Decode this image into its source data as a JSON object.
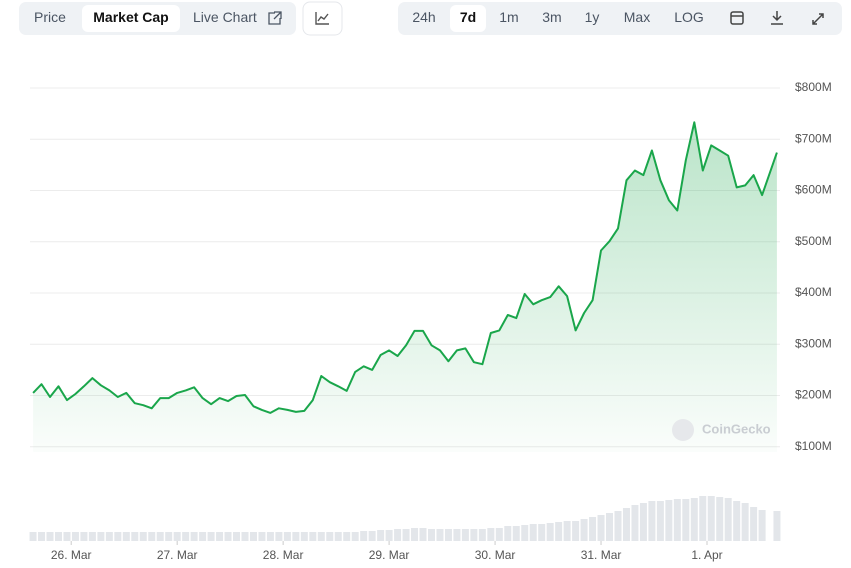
{
  "toolbar": {
    "tabs": [
      "Price",
      "Market Cap",
      "Live Chart"
    ],
    "active_tab": 1,
    "ranges": [
      "24h",
      "7d",
      "1m",
      "3m",
      "1y",
      "Max",
      "LOG"
    ],
    "active_range": 1
  },
  "chart_data": {
    "type": "line",
    "watermark": "CoinGecko",
    "grid": true,
    "x": [
      25.64,
      25.72,
      25.8,
      25.88,
      25.96,
      26.04,
      26.12,
      26.2,
      26.28,
      26.36,
      26.44,
      26.52,
      26.6,
      26.68,
      26.76,
      26.84,
      26.92,
      27.0,
      27.08,
      27.16,
      27.24,
      27.32,
      27.4,
      27.48,
      27.56,
      27.64,
      27.72,
      27.8,
      27.88,
      27.96,
      28.04,
      28.12,
      28.2,
      28.28,
      28.36,
      28.44,
      28.52,
      28.6,
      28.68,
      28.76,
      28.84,
      28.92,
      29.0,
      29.08,
      29.16,
      29.24,
      29.32,
      29.4,
      29.48,
      29.56,
      29.64,
      29.72,
      29.8,
      29.88,
      29.96,
      30.04,
      30.12,
      30.2,
      30.28,
      30.36,
      30.44,
      30.52,
      30.6,
      30.68,
      30.76,
      30.84,
      30.92,
      31.0,
      31.08,
      31.16,
      31.24,
      31.32,
      31.4,
      31.48,
      31.56,
      31.64,
      31.72,
      31.8,
      31.88,
      31.96,
      32.04,
      32.12,
      32.2,
      32.28,
      32.36,
      32.44,
      32.52,
      32.66
    ],
    "series": [
      {
        "name": "Market Cap",
        "color": "#1aa64b",
        "values": [
          205,
          222,
          197,
          218,
          191,
          203,
          218,
          234,
          220,
          210,
          197,
          205,
          185,
          181,
          175,
          195,
          195,
          205,
          210,
          216,
          195,
          183,
          195,
          189,
          199,
          201,
          179,
          172,
          166,
          175,
          172,
          168,
          170,
          191,
          238,
          226,
          218,
          209,
          246,
          257,
          250,
          279,
          288,
          277,
          298,
          326,
          326,
          298,
          288,
          267,
          288,
          292,
          265,
          261,
          322,
          327,
          357,
          351,
          398,
          378,
          386,
          392,
          413,
          394,
          327,
          361,
          386,
          483,
          501,
          526,
          620,
          639,
          630,
          678,
          620,
          581,
          561,
          659,
          733,
          639,
          688,
          678,
          668,
          606,
          610,
          630,
          591,
          674
        ]
      },
      {
        "name": "Volume",
        "color": "#e3e6ea",
        "axis": "y2",
        "values": [
          9,
          9,
          9,
          9,
          9,
          9,
          9,
          9,
          9,
          9,
          9,
          9,
          9,
          9,
          9,
          9,
          9,
          9,
          9,
          9,
          9,
          9,
          9,
          9,
          9,
          9,
          9,
          9,
          9,
          9,
          9,
          9,
          9,
          9,
          9,
          9,
          9,
          9,
          9,
          10,
          10,
          11,
          11,
          12,
          12,
          13,
          13,
          12,
          12,
          12,
          12,
          12,
          12,
          12,
          13,
          13,
          15,
          15,
          16,
          17,
          17,
          18,
          19,
          20,
          20,
          22,
          24,
          26,
          28,
          30,
          33,
          36,
          38,
          40,
          40,
          41,
          42,
          42,
          43,
          45,
          45,
          44,
          43,
          40,
          38,
          34,
          31,
          30
        ]
      }
    ],
    "xlim": [
      25.63,
      32.67
    ],
    "xticks": [
      {
        "value": 26,
        "label": "26. Mar"
      },
      {
        "value": 27,
        "label": "27. Mar"
      },
      {
        "value": 28,
        "label": "28. Mar"
      },
      {
        "value": 29,
        "label": "29. Mar"
      },
      {
        "value": 30,
        "label": "30. Mar"
      },
      {
        "value": 31,
        "label": "31. Mar"
      },
      {
        "value": 32,
        "label": "1. Apr"
      }
    ],
    "ylim": [
      0,
      800
    ],
    "yticks": [
      {
        "value": 100,
        "label": "$100M"
      },
      {
        "value": 200,
        "label": "$200M"
      },
      {
        "value": 300,
        "label": "$300M"
      },
      {
        "value": 400,
        "label": "$400M"
      },
      {
        "value": 500,
        "label": "$500M"
      },
      {
        "value": 600,
        "label": "$600M"
      },
      {
        "value": 700,
        "label": "$700M"
      },
      {
        "value": 800,
        "label": "$800M"
      }
    ],
    "y2lim": [
      0,
      50
    ]
  }
}
